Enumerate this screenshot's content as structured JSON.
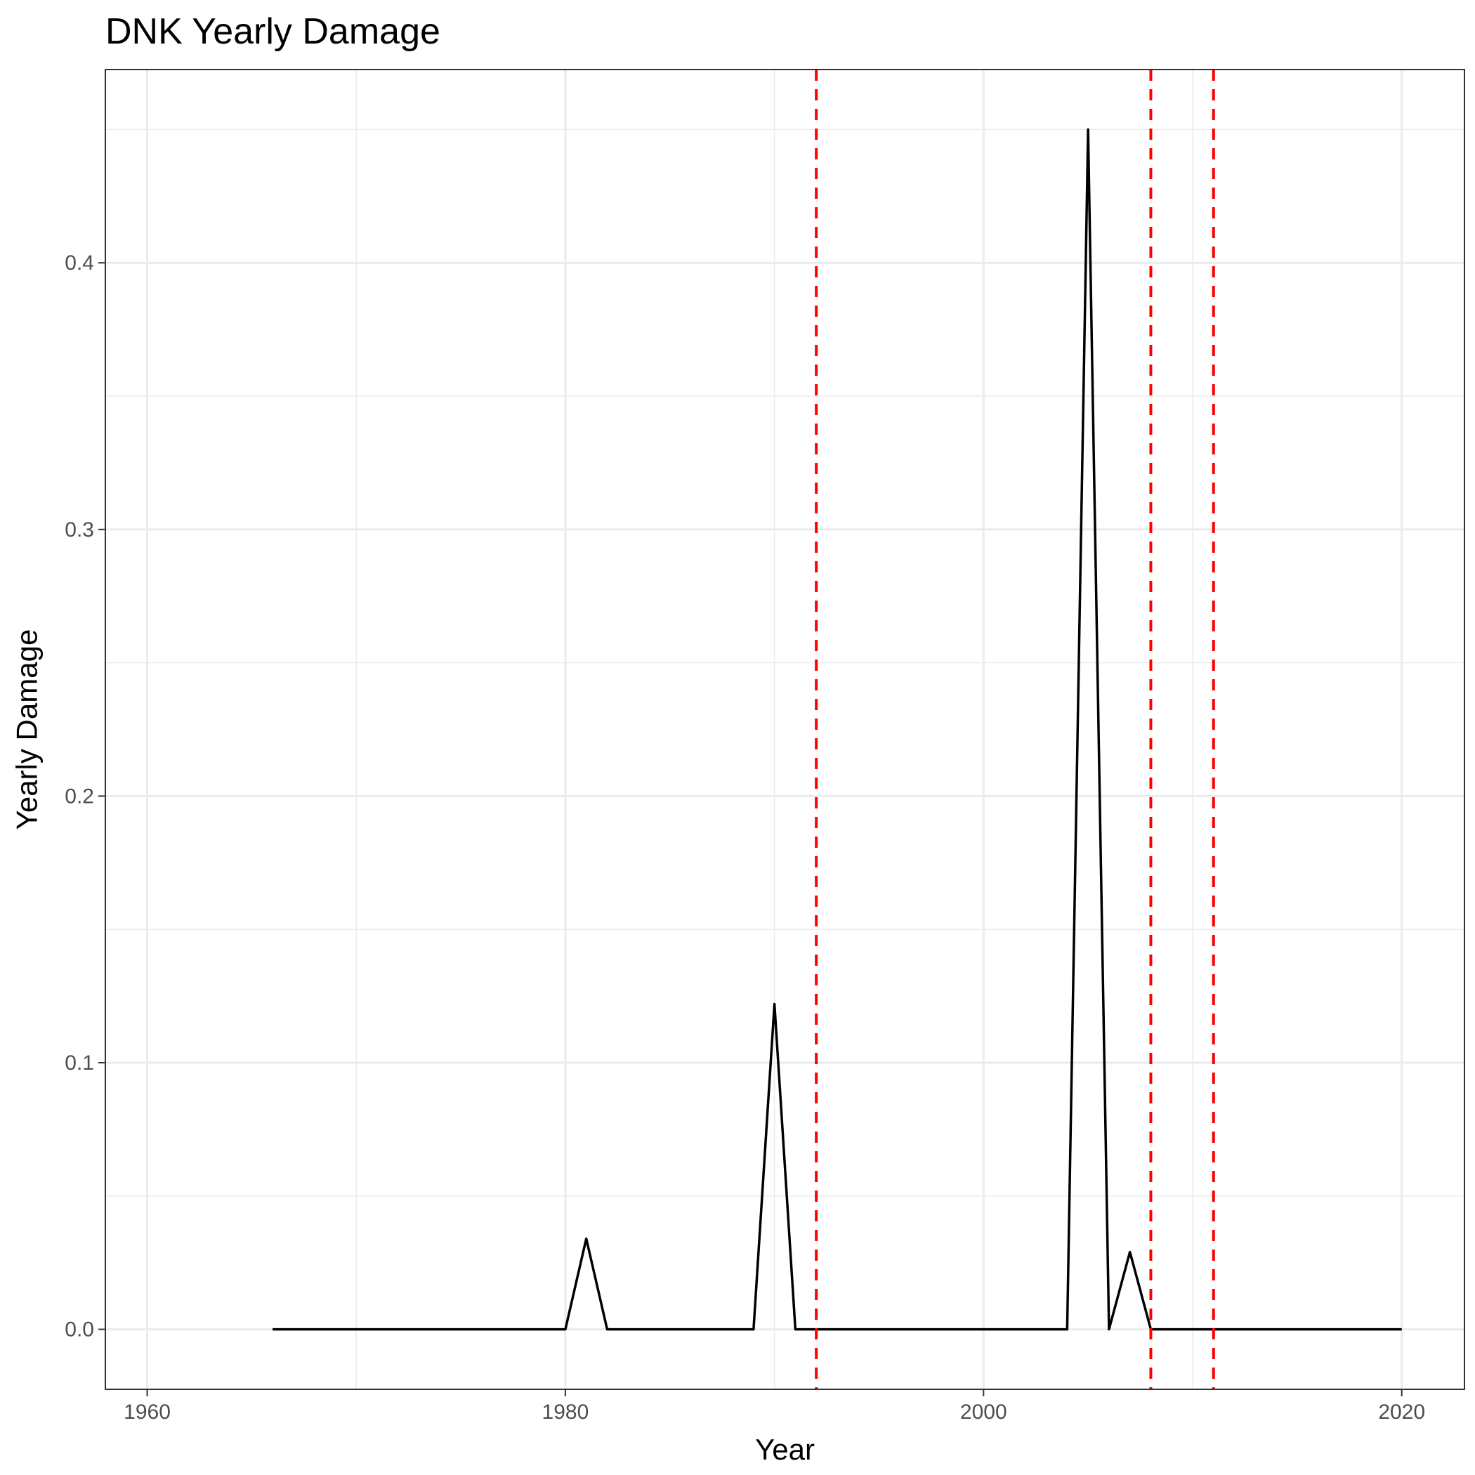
{
  "chart_data": {
    "type": "line",
    "title": "DNK Yearly Damage",
    "xlabel": "Year",
    "ylabel": "Yearly Damage",
    "xlim": [
      1958,
      2023
    ],
    "ylim": [
      -0.0225,
      0.4725
    ],
    "x_ticks": [
      1960,
      1980,
      2000,
      2020
    ],
    "x_minor_ticks": [
      1970,
      1990,
      2010
    ],
    "y_ticks": [
      0.0,
      0.1,
      0.2,
      0.3,
      0.4
    ],
    "y_tick_labels": [
      "0.0",
      "0.1",
      "0.2",
      "0.3",
      "0.4"
    ],
    "y_minor_ticks": [
      0.05,
      0.15,
      0.25,
      0.35,
      0.45
    ],
    "grid": true,
    "legend": "none",
    "line_color": "#000000",
    "vline_color": "#ff0000",
    "vertical_lines": [
      1992,
      2008,
      2011
    ],
    "x": [
      1966,
      1967,
      1968,
      1969,
      1970,
      1971,
      1972,
      1973,
      1974,
      1975,
      1976,
      1977,
      1978,
      1979,
      1980,
      1981,
      1982,
      1983,
      1984,
      1985,
      1986,
      1987,
      1988,
      1989,
      1990,
      1991,
      1992,
      1993,
      1994,
      1995,
      1996,
      1997,
      1998,
      1999,
      2000,
      2001,
      2002,
      2003,
      2004,
      2005,
      2006,
      2007,
      2008,
      2009,
      2010,
      2011,
      2012,
      2013,
      2014,
      2015,
      2016,
      2017,
      2018,
      2019,
      2020
    ],
    "y": [
      0,
      0,
      0,
      0,
      0,
      0,
      0,
      0,
      0,
      0,
      0,
      0,
      0,
      0,
      0,
      0.034,
      0,
      0,
      0,
      0,
      0,
      0,
      0,
      0,
      0.122,
      0,
      0,
      0,
      0,
      0,
      0,
      0,
      0,
      0,
      0,
      0,
      0,
      0,
      0,
      0.45,
      0,
      0.029,
      0,
      0,
      0,
      0,
      0,
      0,
      0,
      0,
      0,
      0,
      0,
      0,
      0
    ]
  }
}
